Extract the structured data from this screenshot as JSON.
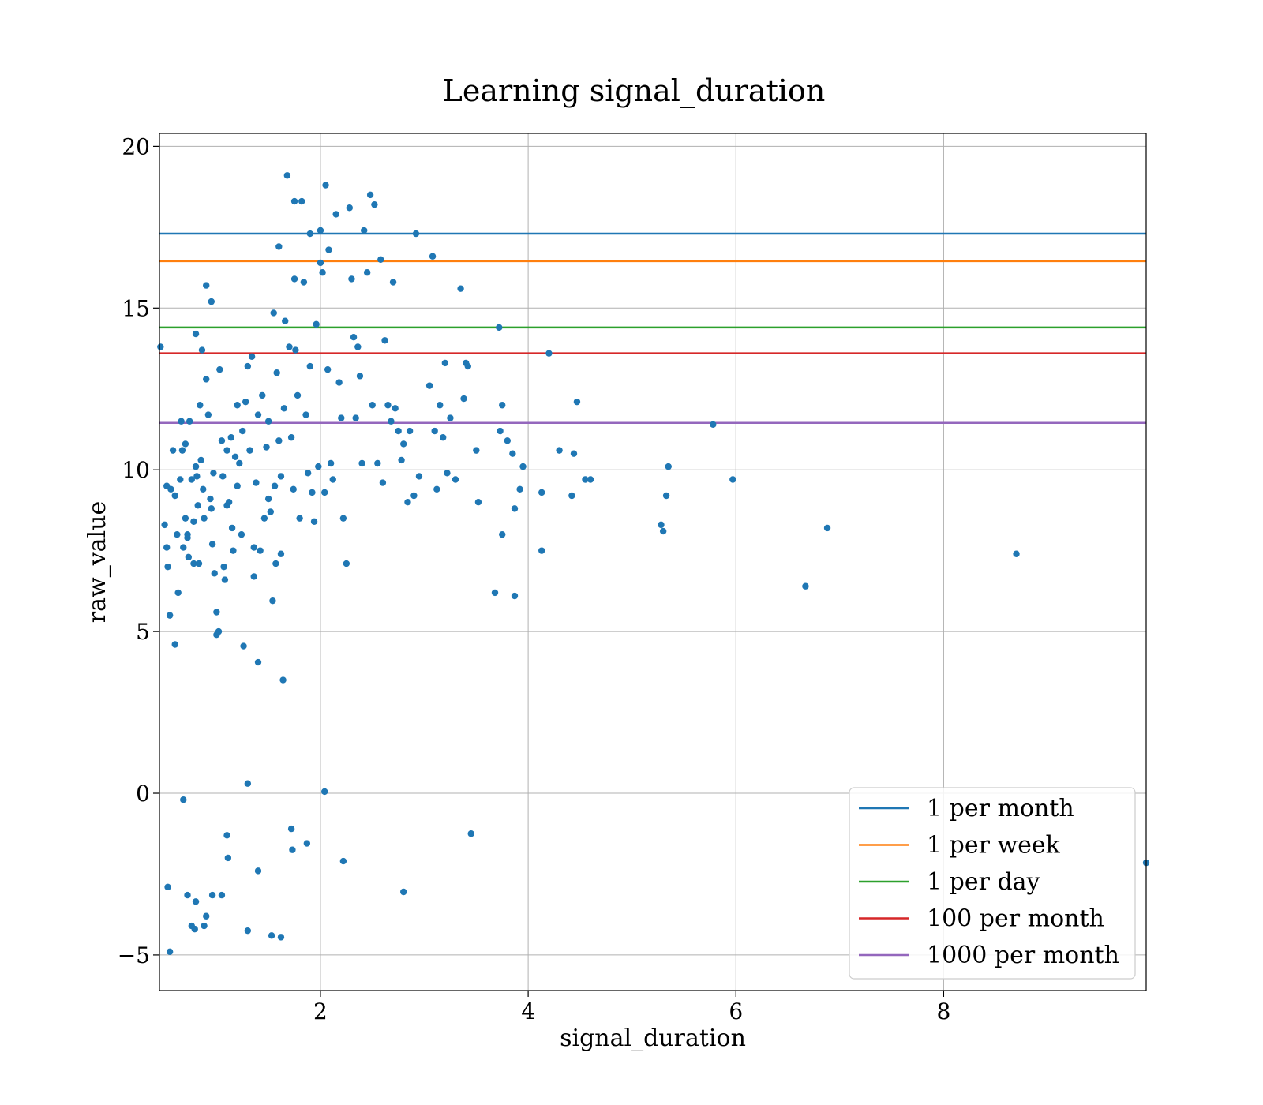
{
  "chart_data": {
    "type": "scatter",
    "title": "Learning signal_duration",
    "xlabel": "signal_duration",
    "ylabel": "raw_value",
    "xlim": [
      0.45,
      9.95
    ],
    "ylim": [
      -6.1,
      20.4
    ],
    "x_ticks": [
      2,
      4,
      6,
      8
    ],
    "x_tick_labels": [
      "2",
      "4",
      "6",
      "8"
    ],
    "y_ticks": [
      -5,
      0,
      5,
      10,
      15,
      20
    ],
    "y_tick_labels": [
      "−5",
      "0",
      "5",
      "10",
      "15",
      "20"
    ],
    "grid": true,
    "legend_position": "lower-right",
    "point_color": "#1f77b4",
    "points": [
      [
        0.46,
        13.8
      ],
      [
        0.52,
        9.5
      ],
      [
        0.56,
        9.4
      ],
      [
        0.5,
        8.3
      ],
      [
        0.52,
        7.6
      ],
      [
        0.53,
        7.0
      ],
      [
        0.55,
        5.5
      ],
      [
        0.58,
        10.6
      ],
      [
        0.6,
        4.6
      ],
      [
        0.6,
        9.2
      ],
      [
        0.62,
        8.0
      ],
      [
        0.63,
        6.2
      ],
      [
        0.65,
        9.7
      ],
      [
        0.66,
        11.5
      ],
      [
        0.67,
        10.6
      ],
      [
        0.68,
        7.6
      ],
      [
        0.7,
        10.8
      ],
      [
        0.7,
        8.5
      ],
      [
        0.72,
        8.0
      ],
      [
        0.72,
        7.9
      ],
      [
        0.73,
        7.3
      ],
      [
        0.74,
        11.5
      ],
      [
        0.76,
        9.7
      ],
      [
        0.78,
        8.4
      ],
      [
        0.78,
        7.1
      ],
      [
        0.8,
        10.1
      ],
      [
        0.8,
        14.2
      ],
      [
        0.81,
        9.8
      ],
      [
        0.82,
        8.9
      ],
      [
        0.83,
        7.1
      ],
      [
        0.84,
        12.0
      ],
      [
        0.85,
        10.3
      ],
      [
        0.86,
        13.7
      ],
      [
        0.87,
        9.4
      ],
      [
        0.88,
        8.5
      ],
      [
        0.9,
        12.8
      ],
      [
        0.9,
        15.7
      ],
      [
        0.92,
        11.7
      ],
      [
        0.94,
        9.1
      ],
      [
        0.95,
        15.2
      ],
      [
        0.95,
        8.8
      ],
      [
        0.96,
        7.7
      ],
      [
        0.97,
        9.9
      ],
      [
        0.98,
        6.8
      ],
      [
        1.0,
        5.6
      ],
      [
        1.0,
        4.9
      ],
      [
        1.02,
        5.0
      ],
      [
        1.03,
        13.1
      ],
      [
        1.05,
        10.9
      ],
      [
        1.06,
        9.8
      ],
      [
        1.07,
        7.0
      ],
      [
        1.08,
        6.6
      ],
      [
        1.1,
        10.6
      ],
      [
        1.1,
        8.9
      ],
      [
        1.12,
        9.0
      ],
      [
        1.14,
        11.0
      ],
      [
        1.15,
        8.2
      ],
      [
        1.16,
        7.5
      ],
      [
        1.18,
        10.4
      ],
      [
        1.2,
        12.0
      ],
      [
        1.2,
        9.5
      ],
      [
        1.22,
        10.2
      ],
      [
        1.24,
        8.0
      ],
      [
        1.25,
        11.2
      ],
      [
        1.26,
        4.55
      ],
      [
        1.28,
        12.1
      ],
      [
        1.3,
        13.2
      ],
      [
        1.32,
        10.6
      ],
      [
        1.34,
        13.5
      ],
      [
        1.36,
        7.6
      ],
      [
        1.36,
        6.7
      ],
      [
        1.38,
        9.6
      ],
      [
        1.4,
        11.7
      ],
      [
        1.4,
        4.05
      ],
      [
        1.42,
        7.5
      ],
      [
        1.44,
        12.3
      ],
      [
        1.46,
        8.5
      ],
      [
        1.48,
        10.7
      ],
      [
        1.5,
        11.5
      ],
      [
        1.5,
        9.1
      ],
      [
        1.52,
        8.7
      ],
      [
        1.54,
        5.95
      ],
      [
        1.55,
        14.85
      ],
      [
        1.56,
        9.5
      ],
      [
        1.57,
        7.1
      ],
      [
        1.58,
        13.0
      ],
      [
        1.6,
        16.9
      ],
      [
        1.6,
        10.9
      ],
      [
        1.62,
        9.8
      ],
      [
        1.62,
        7.4
      ],
      [
        1.64,
        3.5
      ],
      [
        1.65,
        11.9
      ],
      [
        1.66,
        14.6
      ],
      [
        1.68,
        19.1
      ],
      [
        1.7,
        13.8
      ],
      [
        1.72,
        11.0
      ],
      [
        1.74,
        9.4
      ],
      [
        1.75,
        15.9
      ],
      [
        1.75,
        18.3
      ],
      [
        1.76,
        13.7
      ],
      [
        1.78,
        12.3
      ],
      [
        1.8,
        8.5
      ],
      [
        1.82,
        18.3
      ],
      [
        1.84,
        15.8
      ],
      [
        1.86,
        11.7
      ],
      [
        1.88,
        9.9
      ],
      [
        1.9,
        17.3
      ],
      [
        1.9,
        13.2
      ],
      [
        1.92,
        9.3
      ],
      [
        1.94,
        8.4
      ],
      [
        1.96,
        14.5
      ],
      [
        1.98,
        10.1
      ],
      [
        2.0,
        17.4
      ],
      [
        2.0,
        16.4
      ],
      [
        2.02,
        16.1
      ],
      [
        2.04,
        9.3
      ],
      [
        2.05,
        18.8
      ],
      [
        2.07,
        13.1
      ],
      [
        2.08,
        16.8
      ],
      [
        2.1,
        10.2
      ],
      [
        2.12,
        9.7
      ],
      [
        2.15,
        17.9
      ],
      [
        2.18,
        12.7
      ],
      [
        2.2,
        11.6
      ],
      [
        2.22,
        8.5
      ],
      [
        2.25,
        7.1
      ],
      [
        2.28,
        18.1
      ],
      [
        2.3,
        15.9
      ],
      [
        2.32,
        14.1
      ],
      [
        2.34,
        11.6
      ],
      [
        2.36,
        13.8
      ],
      [
        2.38,
        12.9
      ],
      [
        2.4,
        10.2
      ],
      [
        2.42,
        17.4
      ],
      [
        2.45,
        16.1
      ],
      [
        2.48,
        18.5
      ],
      [
        2.5,
        12.0
      ],
      [
        2.52,
        18.2
      ],
      [
        2.55,
        10.2
      ],
      [
        2.58,
        16.5
      ],
      [
        2.6,
        9.6
      ],
      [
        2.62,
        14.0
      ],
      [
        2.65,
        12.0
      ],
      [
        2.68,
        11.5
      ],
      [
        2.7,
        15.8
      ],
      [
        2.72,
        11.9
      ],
      [
        2.75,
        11.2
      ],
      [
        2.78,
        10.3
      ],
      [
        2.8,
        10.8
      ],
      [
        2.84,
        9.0
      ],
      [
        2.86,
        11.2
      ],
      [
        2.9,
        9.2
      ],
      [
        2.92,
        17.3
      ],
      [
        2.95,
        9.8
      ],
      [
        3.05,
        12.6
      ],
      [
        3.08,
        16.6
      ],
      [
        3.1,
        11.2
      ],
      [
        3.12,
        9.4
      ],
      [
        3.15,
        12.0
      ],
      [
        3.18,
        11.0
      ],
      [
        3.2,
        13.3
      ],
      [
        3.22,
        9.9
      ],
      [
        3.25,
        11.6
      ],
      [
        3.3,
        9.7
      ],
      [
        3.35,
        15.6
      ],
      [
        3.38,
        12.2
      ],
      [
        3.4,
        13.3
      ],
      [
        3.42,
        13.2
      ],
      [
        3.5,
        10.6
      ],
      [
        3.52,
        9.0
      ],
      [
        3.68,
        6.2
      ],
      [
        3.72,
        14.4
      ],
      [
        3.73,
        11.2
      ],
      [
        3.75,
        12.0
      ],
      [
        3.75,
        8.0
      ],
      [
        3.8,
        10.9
      ],
      [
        3.85,
        10.5
      ],
      [
        3.87,
        6.1
      ],
      [
        3.87,
        8.8
      ],
      [
        3.92,
        9.4
      ],
      [
        3.95,
        10.1
      ],
      [
        4.13,
        9.3
      ],
      [
        4.13,
        7.5
      ],
      [
        4.2,
        13.6
      ],
      [
        4.3,
        10.6
      ],
      [
        4.42,
        9.2
      ],
      [
        4.44,
        10.5
      ],
      [
        4.47,
        12.1
      ],
      [
        4.55,
        9.7
      ],
      [
        4.6,
        9.7
      ],
      [
        5.28,
        8.3
      ],
      [
        5.3,
        8.1
      ],
      [
        5.33,
        9.2
      ],
      [
        5.35,
        10.1
      ],
      [
        5.78,
        11.4
      ],
      [
        5.97,
        9.7
      ],
      [
        6.67,
        6.4
      ],
      [
        6.88,
        8.2
      ],
      [
        8.7,
        7.4
      ],
      [
        9.95,
        -2.15
      ],
      [
        0.53,
        -2.9
      ],
      [
        0.55,
        -4.9
      ],
      [
        0.68,
        -0.2
      ],
      [
        0.72,
        -3.15
      ],
      [
        0.76,
        -4.1
      ],
      [
        0.79,
        -4.2
      ],
      [
        0.8,
        -3.35
      ],
      [
        0.88,
        -4.1
      ],
      [
        0.9,
        -3.8
      ],
      [
        0.96,
        -3.15
      ],
      [
        1.05,
        -3.15
      ],
      [
        1.1,
        -1.3
      ],
      [
        1.11,
        -2.0
      ],
      [
        1.3,
        0.3
      ],
      [
        1.3,
        -4.25
      ],
      [
        1.4,
        -2.4
      ],
      [
        1.53,
        -4.4
      ],
      [
        1.62,
        -4.45
      ],
      [
        1.72,
        -1.1
      ],
      [
        1.73,
        -1.75
      ],
      [
        1.87,
        -1.55
      ],
      [
        2.04,
        0.05
      ],
      [
        2.22,
        -2.1
      ],
      [
        2.8,
        -3.05
      ],
      [
        3.45,
        -1.25
      ]
    ],
    "series": [
      {
        "name": "1 per month",
        "y": 17.3,
        "color": "#1f77b4"
      },
      {
        "name": "1 per week",
        "y": 16.45,
        "color": "#ff7f0e"
      },
      {
        "name": "1 per day",
        "y": 14.4,
        "color": "#2ca02c"
      },
      {
        "name": "100 per month",
        "y": 13.6,
        "color": "#d62728"
      },
      {
        "name": "1000 per month",
        "y": 11.45,
        "color": "#9467bd"
      }
    ]
  }
}
